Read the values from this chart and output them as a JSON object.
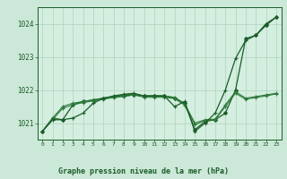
{
  "title": "Graphe pression niveau de la mer (hPa)",
  "background_color": "#cce8d8",
  "plot_bg_color": "#d4eee0",
  "grid_color": "#b0d4be",
  "line_color_dark": "#1a5c28",
  "line_color_medium": "#2d7a3a",
  "x_ticks": [
    0,
    1,
    2,
    3,
    4,
    5,
    6,
    7,
    8,
    9,
    10,
    11,
    12,
    13,
    14,
    15,
    16,
    17,
    18,
    19,
    20,
    21,
    22,
    23
  ],
  "ylim": [
    1020.5,
    1024.5
  ],
  "yticks": [
    1021,
    1022,
    1023,
    1024
  ],
  "series": [
    [
      1020.75,
      1021.15,
      1021.1,
      1021.55,
      1021.65,
      1021.7,
      1021.75,
      1021.8,
      1021.83,
      1021.85,
      1021.82,
      1021.82,
      1021.82,
      1021.75,
      1021.6,
      1020.8,
      1021.05,
      1021.1,
      1021.3,
      1022.0,
      1023.55,
      1023.65,
      1023.95,
      1024.2
    ],
    [
      1020.75,
      1021.15,
      1021.5,
      1021.6,
      1021.65,
      1021.7,
      1021.75,
      1021.8,
      1021.85,
      1021.88,
      1021.82,
      1021.82,
      1021.82,
      1021.78,
      1021.58,
      1021.0,
      1021.1,
      1021.12,
      1021.55,
      1021.95,
      1021.75,
      1021.8,
      1021.85,
      1021.9
    ],
    [
      1020.75,
      1021.1,
      1021.45,
      1021.55,
      1021.62,
      1021.67,
      1021.72,
      1021.77,
      1021.8,
      1021.85,
      1021.78,
      1021.78,
      1021.78,
      1021.74,
      1021.54,
      1020.95,
      1021.08,
      1021.1,
      1021.5,
      1021.9,
      1021.72,
      1021.77,
      1021.82,
      1021.88
    ],
    [
      1020.75,
      1021.1,
      1021.1,
      1021.15,
      1021.3,
      1021.6,
      1021.75,
      1021.82,
      1021.87,
      1021.9,
      1021.82,
      1021.82,
      1021.82,
      1021.5,
      1021.65,
      1020.75,
      1021.0,
      1021.3,
      1022.0,
      1022.95,
      1023.5,
      1023.65,
      1024.0,
      1024.2
    ]
  ]
}
